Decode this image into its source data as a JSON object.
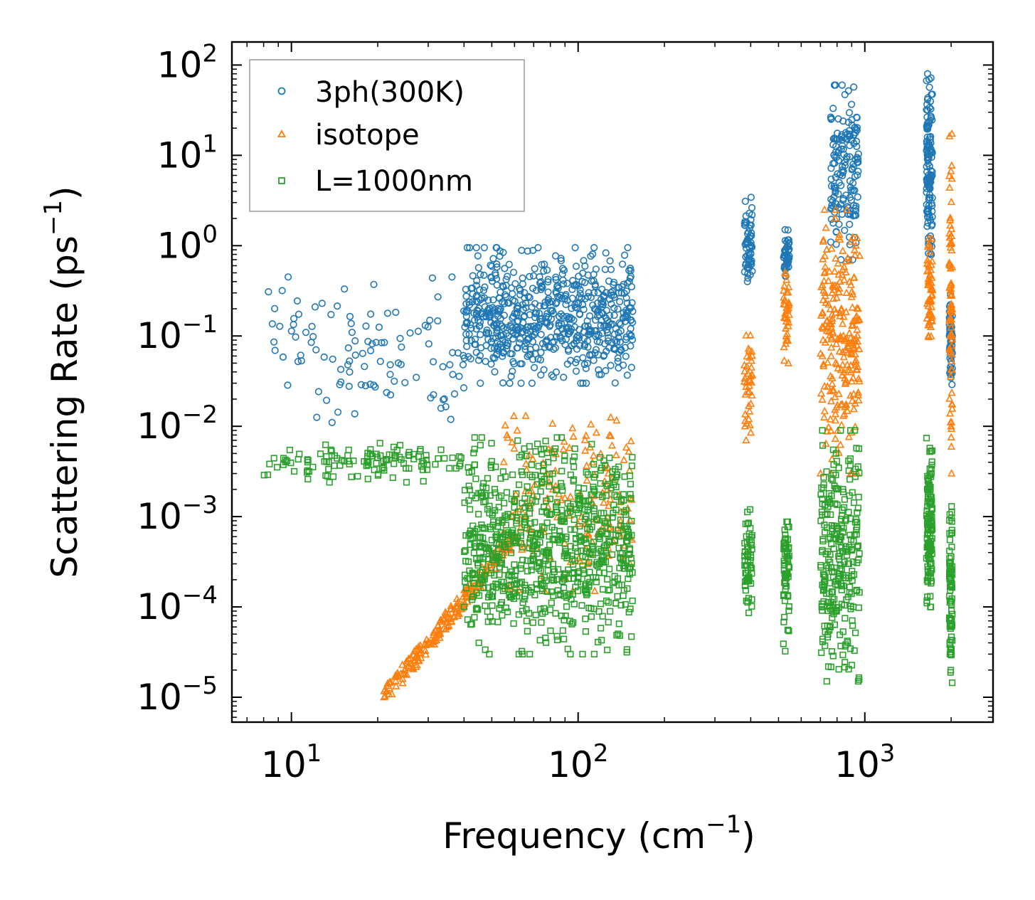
{
  "chart_data": {
    "type": "scatter",
    "title": "",
    "xlabel": "Frequency (cm",
    "xlabel_sup": "−1",
    "xlabel_end": ")",
    "ylabel": "Scattering Rate (ps",
    "ylabel_sup": "−1",
    "ylabel_end": ")",
    "xscale": "log",
    "yscale": "log",
    "xlim": [
      6.2,
      2800
    ],
    "ylim": [
      5.3e-06,
      180
    ],
    "x_ticks": [
      {
        "value": 10,
        "base": "10",
        "exp": "1"
      },
      {
        "value": 100,
        "base": "10",
        "exp": "2"
      },
      {
        "value": 1000,
        "base": "10",
        "exp": "3"
      }
    ],
    "y_ticks": [
      {
        "value": 100,
        "base": "10",
        "exp": "2"
      },
      {
        "value": 10,
        "base": "10",
        "exp": "1"
      },
      {
        "value": 1,
        "base": "10",
        "exp": "0"
      },
      {
        "value": 0.1,
        "base": "10",
        "exp": "−1"
      },
      {
        "value": 0.01,
        "base": "10",
        "exp": "−2"
      },
      {
        "value": 0.001,
        "base": "10",
        "exp": "−3"
      },
      {
        "value": 0.0001,
        "base": "10",
        "exp": "−4"
      },
      {
        "value": 1e-05,
        "base": "10",
        "exp": "−5"
      }
    ],
    "legend_position": "top-left",
    "series": [
      {
        "name": "3ph(300K)",
        "color": "#1f77b4",
        "marker": "circle",
        "groups": [
          {
            "xmin": 8,
            "xmax": 40,
            "ymin": 0.011,
            "ymax": 0.45,
            "n": 110
          },
          {
            "xmin": 40,
            "xmax": 155,
            "ymin": 0.03,
            "ymax": 0.95,
            "n": 650
          },
          {
            "xmin": 380,
            "xmax": 405,
            "ymin": 0.4,
            "ymax": 3.8,
            "n": 60
          },
          {
            "xmin": 520,
            "xmax": 545,
            "ymin": 0.45,
            "ymax": 1.5,
            "n": 50
          },
          {
            "xmin": 760,
            "xmax": 950,
            "ymin": 0.7,
            "ymax": 60,
            "n": 160
          },
          {
            "xmin": 1640,
            "xmax": 1720,
            "ymin": 0.5,
            "ymax": 80,
            "n": 140
          },
          {
            "xmin": 1970,
            "xmax": 2020,
            "ymin": 0.023,
            "ymax": 0.3,
            "n": 60
          }
        ]
      },
      {
        "name": "isotope",
        "color": "#ff7f0e",
        "marker": "triangle",
        "groups": [
          {
            "xmin": 21,
            "xmax": 60,
            "ymin": 1e-05,
            "ymax": 0.0006,
            "trend": "rising",
            "n": 220
          },
          {
            "xmin": 55,
            "xmax": 155,
            "ymin": 0.00015,
            "ymax": 0.018,
            "n": 160
          },
          {
            "xmin": 380,
            "xmax": 405,
            "ymin": 0.007,
            "ymax": 0.11,
            "n": 40
          },
          {
            "xmin": 520,
            "xmax": 545,
            "ymin": 0.05,
            "ymax": 0.5,
            "n": 40
          },
          {
            "xmin": 700,
            "xmax": 960,
            "ymin": 0.003,
            "ymax": 2.5,
            "n": 240
          },
          {
            "xmin": 1640,
            "xmax": 1720,
            "ymin": 0.07,
            "ymax": 1.5,
            "n": 60
          },
          {
            "xmin": 1970,
            "xmax": 2020,
            "ymin": 0.003,
            "ymax": 18,
            "n": 80
          }
        ]
      },
      {
        "name": "L=1000nm",
        "color": "#2ca02c",
        "marker": "square",
        "groups": [
          {
            "xmin": 8,
            "xmax": 40,
            "ymin": 0.0024,
            "ymax": 0.0065,
            "n": 120
          },
          {
            "xmin": 40,
            "xmax": 155,
            "ymin": 3e-05,
            "ymax": 0.0075,
            "n": 800
          },
          {
            "xmin": 380,
            "xmax": 405,
            "ymin": 8e-05,
            "ymax": 0.0012,
            "n": 60
          },
          {
            "xmin": 520,
            "xmax": 545,
            "ymin": 3e-05,
            "ymax": 0.0016,
            "n": 60
          },
          {
            "xmin": 700,
            "xmax": 960,
            "ymin": 1.5e-05,
            "ymax": 0.009,
            "n": 260
          },
          {
            "xmin": 1640,
            "xmax": 1720,
            "ymin": 0.0001,
            "ymax": 0.008,
            "n": 120
          },
          {
            "xmin": 1970,
            "xmax": 2020,
            "ymin": 1.3e-05,
            "ymax": 0.0013,
            "n": 80
          }
        ]
      }
    ]
  }
}
